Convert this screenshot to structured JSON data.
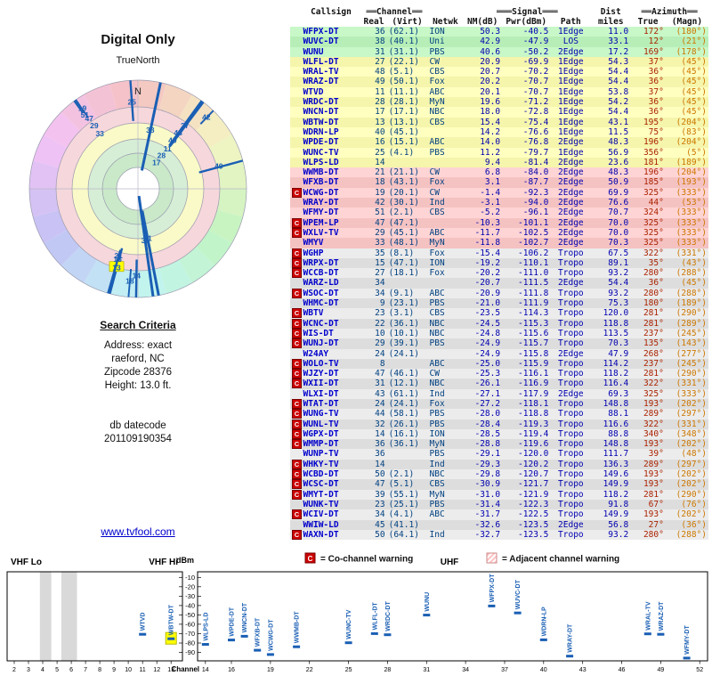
{
  "radar": {
    "title": "Digital Only",
    "subtitle": "TrueNorth",
    "north": "N",
    "highlight_channel": 13
  },
  "search": {
    "heading": "Search Criteria",
    "lines": [
      "Address: exact",
      "raeford, NC",
      "Zipcode 28376",
      "Height: 13.0 ft."
    ],
    "datecode_label": "db datecode",
    "datecode": "201109190354"
  },
  "link": "www.tvfool.com",
  "legend": {
    "co": "C",
    "co_text": "= Co-channel warning",
    "adj_text": "= Adjacent channel warning"
  },
  "colors": {
    "accent": "#1a5fb4",
    "warning": "#cc0000",
    "adjacent": "#ffc4c4",
    "highlight": "#ffff00",
    "link": "#0000cc"
  },
  "table": {
    "group_headers": {
      "channel": "══Channel══",
      "signal": "═══Signal═══",
      "dist": "Dist",
      "azimuth": "══Azimuth══"
    },
    "col_headers": {
      "callsign": "Callsign",
      "real": "Real",
      "virt": "(Virt)",
      "netwk": "Netwk",
      "nm": "NM(dB)",
      "pwr": "Pwr(dBm)",
      "path": "Path",
      "dist_units": "miles",
      "true": "True",
      "magn": "(Magn)"
    },
    "rows": [
      {
        "c": "WFPX-DT",
        "r": "36",
        "v": "(62.1)",
        "n": "ION",
        "nm": "50.3",
        "pwr": "-40.5",
        "path": "1Edge",
        "dist": "11.0",
        "t": "172°",
        "m": "(180°)",
        "band": "green",
        "warn": ""
      },
      {
        "c": "WUVC-DT",
        "r": "38",
        "v": "(40.1)",
        "n": "Uni",
        "nm": "42.9",
        "pwr": "-47.9",
        "path": "LOS",
        "dist": "33.1",
        "t": "12°",
        "m": "(21°)",
        "band": "green",
        "warn": ""
      },
      {
        "c": "WUNU",
        "r": "31",
        "v": "(31.1)",
        "n": "PBS",
        "nm": "40.6",
        "pwr": "-50.2",
        "path": "2Edge",
        "dist": "17.2",
        "t": "169°",
        "m": "(178°)",
        "band": "green",
        "warn": ""
      },
      {
        "c": "WLFL-DT",
        "r": "27",
        "v": "(22.1)",
        "n": "CW",
        "nm": "20.9",
        "pwr": "-69.9",
        "path": "1Edge",
        "dist": "54.3",
        "t": "37°",
        "m": "(45°)",
        "band": "yellow",
        "warn": ""
      },
      {
        "c": "WRAL-TV",
        "r": "48",
        "v": "(5.1)",
        "n": "CBS",
        "nm": "20.7",
        "pwr": "-70.2",
        "path": "1Edge",
        "dist": "54.4",
        "t": "36°",
        "m": "(45°)",
        "band": "yellow",
        "warn": ""
      },
      {
        "c": "WRAZ-DT",
        "r": "49",
        "v": "(50.1)",
        "n": "Fox",
        "nm": "20.2",
        "pwr": "-70.7",
        "path": "1Edge",
        "dist": "54.4",
        "t": "36°",
        "m": "(45°)",
        "band": "yellow",
        "warn": ""
      },
      {
        "c": "WTVD",
        "r": "11",
        "v": "(11.1)",
        "n": "ABC",
        "nm": "20.1",
        "pwr": "-70.7",
        "path": "1Edge",
        "dist": "53.8",
        "t": "37°",
        "m": "(45°)",
        "band": "yellow",
        "warn": ""
      },
      {
        "c": "WRDC-DT",
        "r": "28",
        "v": "(28.1)",
        "n": "MyN",
        "nm": "19.6",
        "pwr": "-71.2",
        "path": "1Edge",
        "dist": "54.2",
        "t": "36°",
        "m": "(45°)",
        "band": "yellow",
        "warn": ""
      },
      {
        "c": "WNCN-DT",
        "r": "17",
        "v": "(17.1)",
        "n": "NBC",
        "nm": "18.0",
        "pwr": "-72.8",
        "path": "1Edge",
        "dist": "54.4",
        "t": "36°",
        "m": "(45°)",
        "band": "yellow",
        "warn": ""
      },
      {
        "c": "WBTW-DT",
        "r": "13",
        "v": "(13.1)",
        "n": "CBS",
        "nm": "15.4",
        "pwr": "-75.4",
        "path": "1Edge",
        "dist": "43.1",
        "t": "195°",
        "m": "(204°)",
        "band": "yellow",
        "warn": ""
      },
      {
        "c": "WDRN-LP",
        "r": "40",
        "v": "(45.1)",
        "n": "",
        "nm": "14.2",
        "pwr": "-76.6",
        "path": "1Edge",
        "dist": "11.5",
        "t": "75°",
        "m": "(83°)",
        "band": "yellow",
        "warn": ""
      },
      {
        "c": "WPDE-DT",
        "r": "16",
        "v": "(15.1)",
        "n": "ABC",
        "nm": "14.0",
        "pwr": "-76.8",
        "path": "2Edge",
        "dist": "48.3",
        "t": "196°",
        "m": "(204°)",
        "band": "yellow",
        "warn": ""
      },
      {
        "c": "WUNC-TV",
        "r": "25",
        "v": "(4.1)",
        "n": "PBS",
        "nm": "11.2",
        "pwr": "-79.7",
        "path": "1Edge",
        "dist": "56.9",
        "t": "356°",
        "m": "(5°)",
        "band": "yellow",
        "warn": ""
      },
      {
        "c": "WLPS-LD",
        "r": "14",
        "v": "",
        "n": "",
        "nm": "9.4",
        "pwr": "-81.4",
        "path": "2Edge",
        "dist": "23.6",
        "t": "181°",
        "m": "(189°)",
        "band": "yellow",
        "warn": ""
      },
      {
        "c": "WWMB-DT",
        "r": "21",
        "v": "(21.1)",
        "n": "CW",
        "nm": "6.8",
        "pwr": "-84.0",
        "path": "2Edge",
        "dist": "48.3",
        "t": "196°",
        "m": "(204°)",
        "band": "pink",
        "warn": ""
      },
      {
        "c": "WFXB-DT",
        "r": "18",
        "v": "(43.1)",
        "n": "Fox",
        "nm": "3.1",
        "pwr": "-87.7",
        "path": "2Edge",
        "dist": "50.9",
        "t": "185°",
        "m": "(193°)",
        "band": "pink",
        "warn": ""
      },
      {
        "c": "WCWG-DT",
        "r": "19",
        "v": "(20.1)",
        "n": "CW",
        "nm": "-1.4",
        "pwr": "-92.3",
        "path": "2Edge",
        "dist": "69.9",
        "t": "325°",
        "m": "(333°)",
        "band": "pink",
        "warn": "C"
      },
      {
        "c": "WRAY-DT",
        "r": "42",
        "v": "(30.1)",
        "n": "Ind",
        "nm": "-3.1",
        "pwr": "-94.0",
        "path": "2Edge",
        "dist": "76.6",
        "t": "44°",
        "m": "(53°)",
        "band": "pink",
        "warn": ""
      },
      {
        "c": "WFMY-DT",
        "r": "51",
        "v": "(2.1)",
        "n": "CBS",
        "nm": "-5.2",
        "pwr": "-96.1",
        "path": "2Edge",
        "dist": "70.7",
        "t": "324°",
        "m": "(333°)",
        "band": "pink",
        "warn": ""
      },
      {
        "c": "WPEM-LP",
        "r": "47",
        "v": "(47.1)",
        "n": "",
        "nm": "-10.3",
        "pwr": "-101.1",
        "path": "2Edge",
        "dist": "70.0",
        "t": "325°",
        "m": "(333°)",
        "band": "pink",
        "warn": "C"
      },
      {
        "c": "WXLV-TV",
        "r": "29",
        "v": "(45.1)",
        "n": "ABC",
        "nm": "-11.7",
        "pwr": "-102.5",
        "path": "2Edge",
        "dist": "70.0",
        "t": "325°",
        "m": "(333°)",
        "band": "pink",
        "warn": "C"
      },
      {
        "c": "WMYV",
        "r": "33",
        "v": "(48.1)",
        "n": "MyN",
        "nm": "-11.8",
        "pwr": "-102.7",
        "path": "2Edge",
        "dist": "70.3",
        "t": "325°",
        "m": "(333°)",
        "band": "pink",
        "warn": ""
      },
      {
        "c": "WGHP",
        "r": "35",
        "v": "(8.1)",
        "n": "Fox",
        "nm": "-15.4",
        "pwr": "-106.2",
        "path": "Tropo",
        "dist": "67.5",
        "t": "322°",
        "m": "(331°)",
        "band": "gray",
        "warn": "C"
      },
      {
        "c": "WRPX-DT",
        "r": "15",
        "v": "(47.1)",
        "n": "ION",
        "nm": "-19.2",
        "pwr": "-110.1",
        "path": "Tropo",
        "dist": "89.1",
        "t": "35°",
        "m": "(43°)",
        "band": "gray",
        "warn": "C"
      },
      {
        "c": "WCCB-DT",
        "r": "27",
        "v": "(18.1)",
        "n": "Fox",
        "nm": "-20.2",
        "pwr": "-111.0",
        "path": "Tropo",
        "dist": "93.2",
        "t": "280°",
        "m": "(288°)",
        "band": "gray",
        "warn": "C"
      },
      {
        "c": "WARZ-LD",
        "r": "34",
        "v": "",
        "n": "",
        "nm": "-20.7",
        "pwr": "-111.5",
        "path": "2Edge",
        "dist": "54.4",
        "t": "36°",
        "m": "(45°)",
        "band": "gray",
        "warn": ""
      },
      {
        "c": "WSOC-DT",
        "r": "34",
        "v": "(9.1)",
        "n": "ABC",
        "nm": "-20.9",
        "pwr": "-111.8",
        "path": "Tropo",
        "dist": "93.2",
        "t": "280°",
        "m": "(288°)",
        "band": "gray",
        "warn": "C"
      },
      {
        "c": "WHMC-DT",
        "r": "9",
        "v": "(23.1)",
        "n": "PBS",
        "nm": "-21.0",
        "pwr": "-111.9",
        "path": "Tropo",
        "dist": "75.3",
        "t": "180°",
        "m": "(189°)",
        "band": "gray",
        "warn": ""
      },
      {
        "c": "WBTV",
        "r": "23",
        "v": "(3.1)",
        "n": "CBS",
        "nm": "-23.5",
        "pwr": "-114.3",
        "path": "Tropo",
        "dist": "120.0",
        "t": "281°",
        "m": "(290°)",
        "band": "gray",
        "warn": "C"
      },
      {
        "c": "WCNC-DT",
        "r": "22",
        "v": "(36.1)",
        "n": "NBC",
        "nm": "-24.5",
        "pwr": "-115.3",
        "path": "Tropo",
        "dist": "118.8",
        "t": "281°",
        "m": "(289°)",
        "band": "gray",
        "warn": "C"
      },
      {
        "c": "WIS-DT",
        "r": "10",
        "v": "(10.1)",
        "n": "NBC",
        "nm": "-24.8",
        "pwr": "-115.6",
        "path": "Tropo",
        "dist": "113.5",
        "t": "237°",
        "m": "(245°)",
        "band": "gray",
        "warn": "C"
      },
      {
        "c": "WUNJ-DT",
        "r": "29",
        "v": "(39.1)",
        "n": "PBS",
        "nm": "-24.9",
        "pwr": "-115.7",
        "path": "Tropo",
        "dist": "70.3",
        "t": "135°",
        "m": "(143°)",
        "band": "gray",
        "warn": "C"
      },
      {
        "c": "W24AY",
        "r": "24",
        "v": "(24.1)",
        "n": "",
        "nm": "-24.9",
        "pwr": "-115.8",
        "path": "2Edge",
        "dist": "47.9",
        "t": "268°",
        "m": "(277°)",
        "band": "gray",
        "warn": ""
      },
      {
        "c": "WOLO-TV",
        "r": "8",
        "v": "",
        "n": "ABC",
        "nm": "-25.0",
        "pwr": "-115.9",
        "path": "Tropo",
        "dist": "114.2",
        "t": "237°",
        "m": "(245°)",
        "band": "gray",
        "warn": "C"
      },
      {
        "c": "WJZY-DT",
        "r": "47",
        "v": "(46.1)",
        "n": "CW",
        "nm": "-25.3",
        "pwr": "-116.1",
        "path": "Tropo",
        "dist": "118.2",
        "t": "281°",
        "m": "(290°)",
        "band": "gray",
        "warn": "C"
      },
      {
        "c": "WXII-DT",
        "r": "31",
        "v": "(12.1)",
        "n": "NBC",
        "nm": "-26.1",
        "pwr": "-116.9",
        "path": "Tropo",
        "dist": "116.4",
        "t": "322°",
        "m": "(331°)",
        "band": "gray",
        "warn": "C"
      },
      {
        "c": "WLXI-DT",
        "r": "43",
        "v": "(61.1)",
        "n": "Ind",
        "nm": "-27.1",
        "pwr": "-117.9",
        "path": "2Edge",
        "dist": "69.3",
        "t": "325°",
        "m": "(333°)",
        "band": "gray",
        "warn": ""
      },
      {
        "c": "WTAT-DT",
        "r": "24",
        "v": "(24.1)",
        "n": "Fox",
        "nm": "-27.2",
        "pwr": "-118.1",
        "path": "Tropo",
        "dist": "148.8",
        "t": "193°",
        "m": "(202°)",
        "band": "gray",
        "warn": "C"
      },
      {
        "c": "WUNG-TV",
        "r": "44",
        "v": "(58.1)",
        "n": "PBS",
        "nm": "-28.0",
        "pwr": "-118.8",
        "path": "Tropo",
        "dist": "88.1",
        "t": "289°",
        "m": "(297°)",
        "band": "gray",
        "warn": "C"
      },
      {
        "c": "WUNL-TV",
        "r": "32",
        "v": "(26.1)",
        "n": "PBS",
        "nm": "-28.4",
        "pwr": "-119.3",
        "path": "Tropo",
        "dist": "116.6",
        "t": "322°",
        "m": "(331°)",
        "band": "gray",
        "warn": "C"
      },
      {
        "c": "WGPX-DT",
        "r": "14",
        "v": "(16.1)",
        "n": "ION",
        "nm": "-28.5",
        "pwr": "-119.4",
        "path": "Tropo",
        "dist": "88.8",
        "t": "340°",
        "m": "(348°)",
        "band": "gray",
        "warn": "C"
      },
      {
        "c": "WMMP-DT",
        "r": "36",
        "v": "(36.1)",
        "n": "MyN",
        "nm": "-28.8",
        "pwr": "-119.6",
        "path": "Tropo",
        "dist": "148.8",
        "t": "193°",
        "m": "(202°)",
        "band": "gray",
        "warn": "C"
      },
      {
        "c": "WUNP-TV",
        "r": "36",
        "v": "",
        "n": "PBS",
        "nm": "-29.1",
        "pwr": "-120.0",
        "path": "Tropo",
        "dist": "111.7",
        "t": "39°",
        "m": "(48°)",
        "band": "gray",
        "warn": ""
      },
      {
        "c": "WHKY-TV",
        "r": "14",
        "v": "",
        "n": "Ind",
        "nm": "-29.3",
        "pwr": "-120.2",
        "path": "Tropo",
        "dist": "136.3",
        "t": "289°",
        "m": "(297°)",
        "band": "gray",
        "warn": "C"
      },
      {
        "c": "WCBD-DT",
        "r": "50",
        "v": "(2.1)",
        "n": "NBC",
        "nm": "-29.8",
        "pwr": "-120.7",
        "path": "Tropo",
        "dist": "149.6",
        "t": "193°",
        "m": "(202°)",
        "band": "gray",
        "warn": "C"
      },
      {
        "c": "WCSC-DT",
        "r": "47",
        "v": "(5.1)",
        "n": "CBS",
        "nm": "-30.9",
        "pwr": "-121.7",
        "path": "Tropo",
        "dist": "149.9",
        "t": "193°",
        "m": "(202°)",
        "band": "gray",
        "warn": "C"
      },
      {
        "c": "WMYT-DT",
        "r": "39",
        "v": "(55.1)",
        "n": "MyN",
        "nm": "-31.0",
        "pwr": "-121.9",
        "path": "Tropo",
        "dist": "118.2",
        "t": "281°",
        "m": "(290°)",
        "band": "gray",
        "warn": "C"
      },
      {
        "c": "WUNK-TV",
        "r": "23",
        "v": "(25.1)",
        "n": "PBS",
        "nm": "-31.4",
        "pwr": "-122.3",
        "path": "Tropo",
        "dist": "91.8",
        "t": "67°",
        "m": "(76°)",
        "band": "gray",
        "warn": ""
      },
      {
        "c": "WCIV-DT",
        "r": "34",
        "v": "(4.1)",
        "n": "ABC",
        "nm": "-31.7",
        "pwr": "-122.5",
        "path": "Tropo",
        "dist": "149.9",
        "t": "193°",
        "m": "(202°)",
        "band": "gray",
        "warn": "C"
      },
      {
        "c": "WWIW-LD",
        "r": "45",
        "v": "(41.1)",
        "n": "",
        "nm": "-32.6",
        "pwr": "-123.5",
        "path": "2Edge",
        "dist": "56.8",
        "t": "27°",
        "m": "(36°)",
        "band": "gray",
        "warn": ""
      },
      {
        "c": "WAXN-DT",
        "r": "50",
        "v": "(64.1)",
        "n": "Ind",
        "nm": "-32.7",
        "pwr": "-123.5",
        "path": "Tropo",
        "dist": "93.2",
        "t": "280°",
        "m": "(288°)",
        "band": "gray",
        "warn": "C"
      }
    ]
  },
  "chart": {
    "dbm_label": "dBm",
    "y_ticks": [
      -10,
      -20,
      -30,
      -40,
      -50,
      -60,
      -70,
      -80,
      -90
    ],
    "channel_label": "Channel",
    "vhf": {
      "lo_label": "VHF Lo",
      "hi_label": "VHF Hi",
      "x_ticks": [
        2,
        3,
        4,
        5,
        6,
        7,
        8,
        9,
        10,
        11,
        12,
        13
      ],
      "gray_bands": [
        [
          3.8,
          4.6
        ],
        [
          5.3,
          6.4
        ]
      ],
      "stations": [
        {
          "c": "WTVD",
          "ch": 11,
          "dbm": -70.7
        },
        {
          "c": "WBTW-DT",
          "ch": 13,
          "dbm": -75.4,
          "highlight": true
        }
      ]
    },
    "uhf": {
      "label": "UHF",
      "x_ticks": [
        14,
        16,
        19,
        22,
        25,
        28,
        31,
        34,
        37,
        40,
        43,
        46,
        49,
        52
      ],
      "stations": [
        {
          "c": "WLPS-LD",
          "ch": 14,
          "dbm": -81.4
        },
        {
          "c": "WPDE-DT",
          "ch": 16,
          "dbm": -76.8
        },
        {
          "c": "WNCN-DT",
          "ch": 17,
          "dbm": -72.8
        },
        {
          "c": "WFXB-DT",
          "ch": 18,
          "dbm": -87.7
        },
        {
          "c": "WCWG-DT",
          "ch": 19,
          "dbm": -92.3
        },
        {
          "c": "WWMB-DT",
          "ch": 21,
          "dbm": -84.0
        },
        {
          "c": "WUNC-TV",
          "ch": 25,
          "dbm": -79.7
        },
        {
          "c": "WLFL-DT",
          "ch": 27,
          "dbm": -69.9
        },
        {
          "c": "WRDC-DT",
          "ch": 28,
          "dbm": -71.2
        },
        {
          "c": "WUNU",
          "ch": 31,
          "dbm": -50.2
        },
        {
          "c": "WFPX-DT",
          "ch": 36,
          "dbm": -40.5
        },
        {
          "c": "WUVC-DT",
          "ch": 38,
          "dbm": -47.9
        },
        {
          "c": "WDRN-LP",
          "ch": 40,
          "dbm": -76.6
        },
        {
          "c": "WRAY-DT",
          "ch": 42,
          "dbm": -94.0
        },
        {
          "c": "WRAL-TV",
          "ch": 48,
          "dbm": -70.2
        },
        {
          "c": "WRAZ-DT",
          "ch": 49,
          "dbm": -70.7
        },
        {
          "c": "WFMY-DT",
          "ch": 51,
          "dbm": -96.1
        }
      ]
    }
  }
}
